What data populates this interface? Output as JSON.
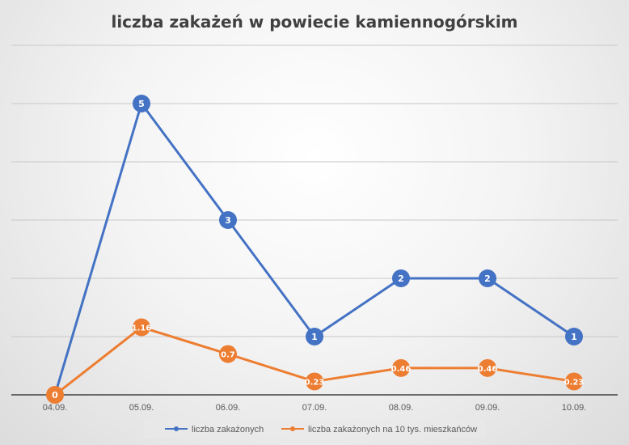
{
  "colors": {
    "series_1": "#4472C4",
    "series_2": "#ED7D31",
    "gridline": "#C8C8C8",
    "axis": "#404040"
  },
  "chart_data": {
    "type": "line",
    "title": "liczba zakażeń w powiecie kamiennogórskim",
    "xlabel": "",
    "ylabel": "",
    "categories": [
      "04.09.",
      "05.09.",
      "06.09.",
      "07.09.",
      "08.09.",
      "09.09.",
      "10.09."
    ],
    "ylim": [
      0,
      6
    ],
    "y_major_unit": 1,
    "y_tick_labels_visible": false,
    "grid": true,
    "legend_position": "bottom",
    "series": [
      {
        "name": "liczba zakażonych",
        "values": [
          0,
          5,
          3,
          1,
          2,
          2,
          1
        ],
        "labels": [
          "",
          "5",
          "3",
          "1",
          "2",
          "2",
          "1"
        ],
        "color": "#4472C4"
      },
      {
        "name": "liczba zakażonych na 10 tys. mieszkańców",
        "values": [
          0,
          1.16,
          0.7,
          0.23,
          0.46,
          0.46,
          0.23
        ],
        "labels": [
          "0",
          "1.16",
          "0.7",
          "0.23",
          "0.46",
          "0.46",
          "0.23"
        ],
        "color": "#ED7D31"
      }
    ]
  }
}
